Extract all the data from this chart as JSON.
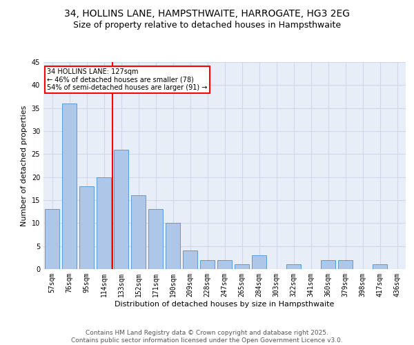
{
  "title1": "34, HOLLINS LANE, HAMPSTHWAITE, HARROGATE, HG3 2EG",
  "title2": "Size of property relative to detached houses in Hampsthwaite",
  "xlabel": "Distribution of detached houses by size in Hampsthwaite",
  "ylabel": "Number of detached properties",
  "categories": [
    "57sqm",
    "76sqm",
    "95sqm",
    "114sqm",
    "133sqm",
    "152sqm",
    "171sqm",
    "190sqm",
    "209sqm",
    "228sqm",
    "247sqm",
    "265sqm",
    "284sqm",
    "303sqm",
    "322sqm",
    "341sqm",
    "360sqm",
    "379sqm",
    "398sqm",
    "417sqm",
    "436sqm"
  ],
  "values": [
    13,
    36,
    18,
    20,
    26,
    16,
    13,
    10,
    4,
    2,
    2,
    1,
    3,
    0,
    1,
    0,
    2,
    2,
    0,
    1,
    0
  ],
  "bar_color": "#aec6e8",
  "bar_edge_color": "#5a9bd5",
  "grid_color": "#d0d8e8",
  "background_color": "#e8eef8",
  "annotation_text": "34 HOLLINS LANE: 127sqm\n← 46% of detached houses are smaller (78)\n54% of semi-detached houses are larger (91) →",
  "vline_x_index": 4,
  "vline_color": "red",
  "annotation_box_color": "white",
  "annotation_box_edge_color": "red",
  "ylim": [
    0,
    45
  ],
  "yticks": [
    0,
    5,
    10,
    15,
    20,
    25,
    30,
    35,
    40,
    45
  ],
  "footer_text": "Contains HM Land Registry data © Crown copyright and database right 2025.\nContains public sector information licensed under the Open Government Licence v3.0.",
  "title_fontsize": 10,
  "subtitle_fontsize": 9,
  "axis_label_fontsize": 8,
  "tick_fontsize": 7,
  "footer_fontsize": 6.5
}
